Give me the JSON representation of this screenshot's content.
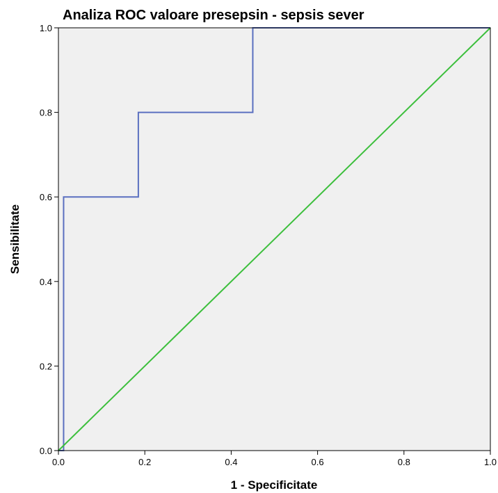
{
  "chart_data": {
    "type": "line",
    "title": "Analiza ROC valoare presepsin - sepsis sever",
    "xlabel": "1 - Specificitate",
    "ylabel": "Sensibilitate",
    "xlim": [
      0,
      1
    ],
    "ylim": [
      0,
      1
    ],
    "x_ticks": [
      "0.0",
      "0.2",
      "0.4",
      "0.6",
      "0.8",
      "1.0"
    ],
    "y_ticks": [
      "0.0",
      "0.2",
      "0.4",
      "0.6",
      "0.8",
      "1.0"
    ],
    "grid": false,
    "legend": "none",
    "plot_background": "#f0f0f0",
    "series": [
      {
        "color": "#5a6fc0",
        "points": [
          [
            0,
            0
          ],
          [
            0.012,
            0
          ],
          [
            0.012,
            0.6
          ],
          [
            0.185,
            0.6
          ],
          [
            0.185,
            0.8
          ],
          [
            0.45,
            0.8
          ],
          [
            0.45,
            1.0
          ],
          [
            1.0,
            1.0
          ]
        ]
      },
      {
        "color": "#3cbf3c",
        "points": [
          [
            0,
            0
          ],
          [
            1,
            1
          ]
        ]
      }
    ]
  }
}
